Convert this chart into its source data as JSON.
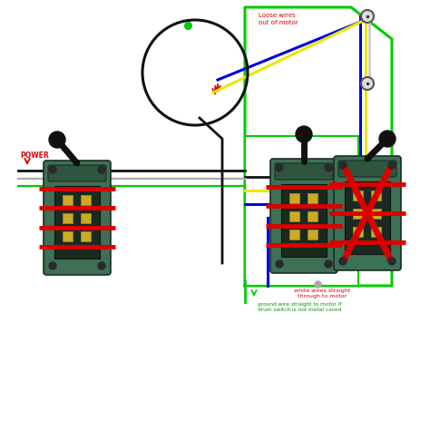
{
  "bg_color": "#ffffff",
  "fig_w": 4.74,
  "fig_h": 4.74,
  "dpi": 100,
  "yellow": "#e8e800",
  "blue": "#0000dd",
  "black": "#111111",
  "green_wire": "#00cc00",
  "white_wire": "#cccccc",
  "red": "#dd0000",
  "green_border": "#00cc00",
  "switch_green": "#3d7055",
  "switch_dark": "#2a4d38",
  "contact_yellow": "#ccaa22",
  "text_red": "#dd0000",
  "text_green": "#009900",
  "power_text": "POWER",
  "label_loose": "Loose wires\nout of motor",
  "label_white1": "white wires straight",
  "label_white2": "through to motor",
  "label_gnd1": "ground wire straight to motor if",
  "label_gnd2": "drum switch is not metal cased"
}
